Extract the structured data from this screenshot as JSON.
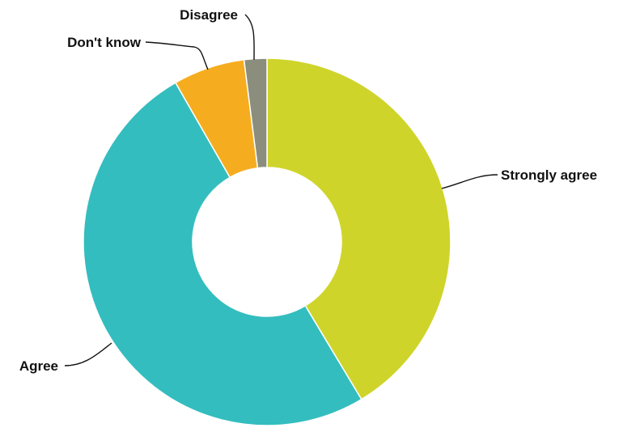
{
  "chart_data": {
    "type": "pie",
    "variant": "donut",
    "title": "",
    "categories": [
      "Strongly agree",
      "Agree",
      "Don't know",
      "Disagree"
    ],
    "values": [
      41.4,
      50.3,
      6.3,
      2.0
    ],
    "unit": "%",
    "start_angle_deg": 0,
    "direction": "clockwise",
    "legend": "none (labels with leader lines)",
    "colors": {
      "Strongly agree": "#cfd42a",
      "Agree": "#34bdbf",
      "Don't know": "#f5ad1f",
      "Disagree": "#8b8e7d"
    }
  }
}
